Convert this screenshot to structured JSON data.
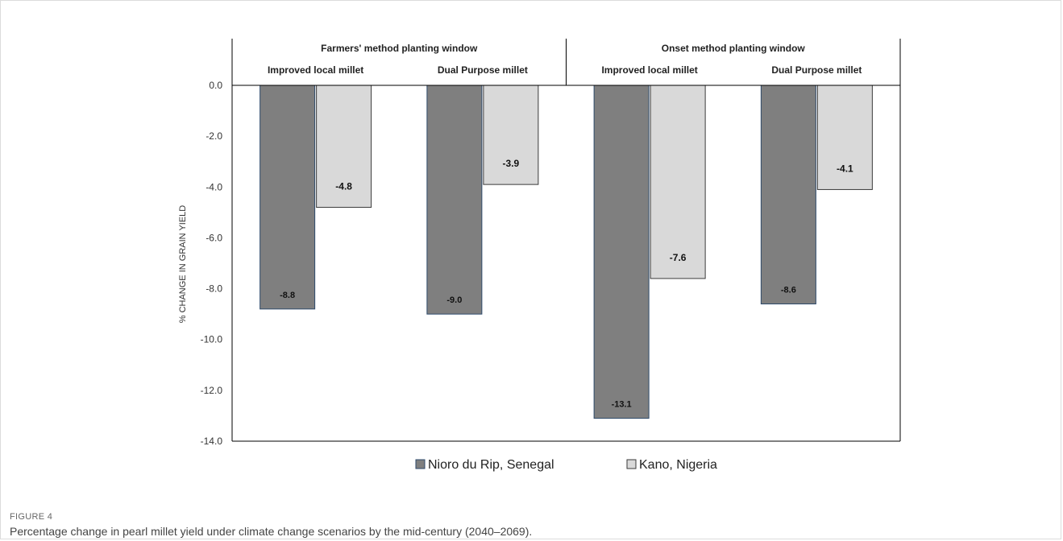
{
  "chart_data": {
    "type": "bar",
    "title": "",
    "ylabel": "% CHANGE IN GRAIN YIELD",
    "xlabel": "",
    "ylim": [
      -14,
      0
    ],
    "yticks": [
      0,
      -2,
      -4,
      -6,
      -8,
      -10,
      -12,
      -14
    ],
    "ytick_labels": [
      "0.0",
      "-2.0",
      "-4.0",
      "-6.0",
      "-8.0",
      "-10.0",
      "-12.0",
      "-14.0"
    ],
    "grid": false,
    "legend_position": "bottom",
    "groups": [
      {
        "label": "Farmers' method planting window",
        "categories": [
          "Improved local millet",
          "Dual Purpose millet"
        ]
      },
      {
        "label": "Onset method planting window",
        "categories": [
          "Improved local millet",
          "Dual Purpose millet"
        ]
      }
    ],
    "categories": [
      "Improved local millet",
      "Dual Purpose millet",
      "Improved local millet",
      "Dual Purpose millet"
    ],
    "series": [
      {
        "name": "Nioro du Rip, Senegal",
        "color": "#7f7f7f",
        "values": [
          -8.8,
          -9.0,
          -13.1,
          -8.6
        ],
        "value_labels": [
          "-8.8",
          "-9.0",
          "-13.1",
          "-8.6"
        ]
      },
      {
        "name": "Kano, Nigeria",
        "color": "#d9d9d9",
        "values": [
          -4.8,
          -3.9,
          -7.6,
          -4.1
        ],
        "value_labels": [
          "-4.8",
          "-3.9",
          "-7.6",
          "-4.1"
        ]
      }
    ]
  },
  "caption": {
    "label": "FIGURE 4",
    "text": "Percentage change in pearl millet yield under climate change scenarios by the mid-century (2040–2069)."
  }
}
